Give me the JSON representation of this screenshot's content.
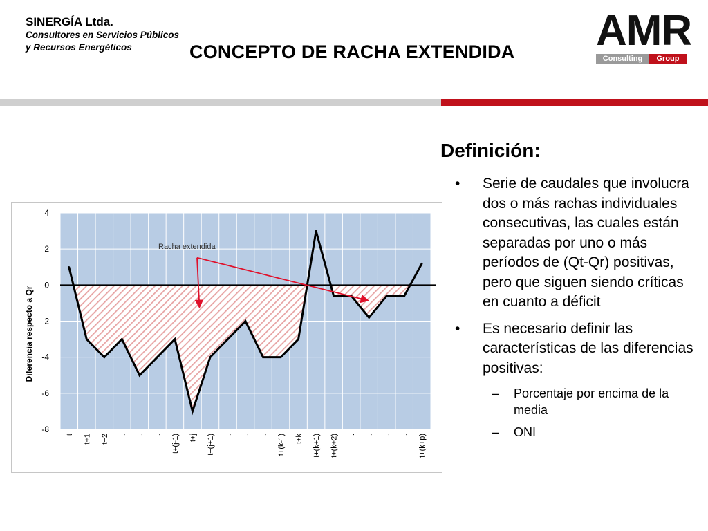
{
  "header": {
    "company_name": "SINERGÍA Ltda.",
    "company_line1": "Consultores en Servicios Públicos",
    "company_line2": "y Recursos Energéticos",
    "slide_title": "CONCEPTO DE RACHA EXTENDIDA",
    "logo_text": "AMR",
    "logo_consulting": "Consulting",
    "logo_group": "Group"
  },
  "definition": {
    "title": "Definición:",
    "bullet1": "Serie de caudales que involucra dos o más rachas individuales consecutivas, las cuales están separadas por uno o más períodos de (Qt-Qr) positivas, pero que siguen siendo críticas en cuanto a déficit",
    "bullet2": "Es necesario definir las características de las diferencias positivas:",
    "sub1": "Porcentaje por encima de la media",
    "sub2": "ONI",
    "bullet_char": "•",
    "dash_char": "–"
  },
  "colors": {
    "accent": "#c0111b",
    "plot_bg": "#b8cce4",
    "hatch": "#e7a3a3",
    "gray_rule": "#cfcfcf"
  },
  "chart_data": {
    "type": "line",
    "ylabel": "Diferencia  respecto a Qr",
    "ylim": [
      -8,
      4
    ],
    "yticks": [
      4,
      2,
      0,
      -2,
      -4,
      -6,
      -8
    ],
    "categories": [
      "t",
      "t+1",
      "t+2",
      ".",
      ".",
      ".",
      "t+(j-1)",
      "t+j",
      "t+(j+1)",
      ".",
      ".",
      ".",
      "t+(k-1)",
      "t+k",
      "t+(k+1)",
      "t+(k+2)",
      ".",
      ".",
      ".",
      ".",
      "t+(k+p)"
    ],
    "values": [
      1,
      -3,
      -4,
      -3,
      -5,
      -4,
      -3,
      -7,
      -4,
      -3,
      -2,
      -4,
      -4,
      -3,
      3,
      -0.6,
      -0.6,
      -1.8,
      -0.6,
      -0.6,
      1.2
    ],
    "annotation": "Racha extendida",
    "grid": true
  }
}
